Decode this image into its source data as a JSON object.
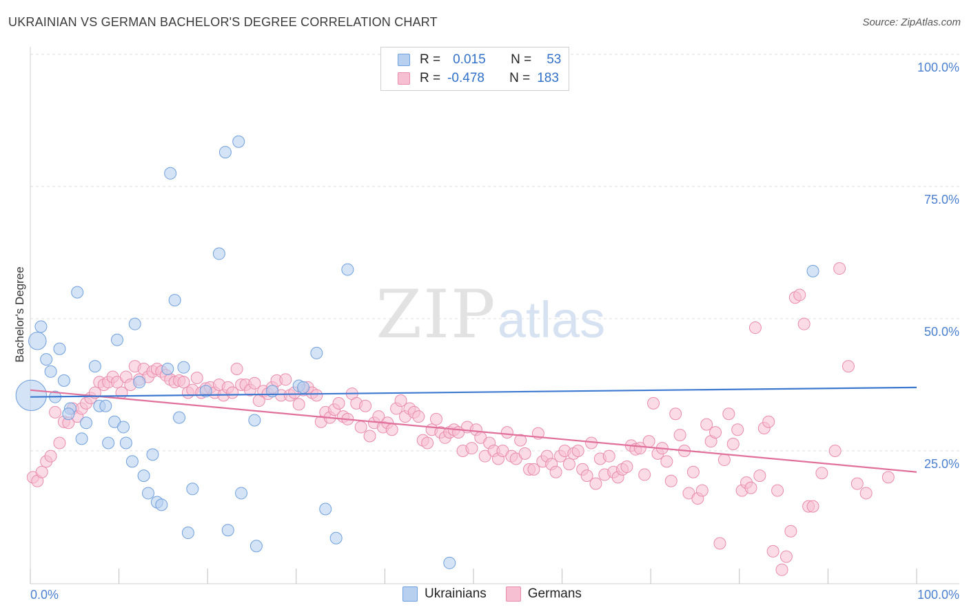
{
  "title": "UKRAINIAN VS GERMAN BACHELOR'S DEGREE CORRELATION CHART",
  "source": "Source: ZipAtlas.com",
  "watermark": {
    "zip": "ZIP",
    "atlas": "atlas"
  },
  "legend": {
    "rows": [
      {
        "r_label": "R =",
        "r_value": "0.015",
        "n_label": "N =",
        "n_value": "53"
      },
      {
        "r_label": "R =",
        "r_value": "-0.478",
        "n_label": "N =",
        "n_value": "183"
      }
    ]
  },
  "bottom_legend": {
    "ukrainians": "Ukrainians",
    "germans": "Germans"
  },
  "colors": {
    "blue_fill": "#b8d0f0",
    "blue_stroke": "#6f9fdc",
    "blue_line": "#3c78d0",
    "pink_fill": "#f7c0d2",
    "pink_stroke": "#e98aab",
    "pink_line": "#e0709a",
    "axis_text": "#4a7fd0",
    "grid": "#dddddd"
  },
  "chart_data": {
    "type": "scatter",
    "title": "UKRAINIAN VS GERMAN BACHELOR'S DEGREE CORRELATION CHART",
    "xlabel": "",
    "ylabel": "Bachelor's Degree",
    "xlim": [
      0,
      100
    ],
    "ylim": [
      0,
      100
    ],
    "x_tick_labels": [
      "0.0%",
      "100.0%"
    ],
    "y_tick_labels": [
      "25.0%",
      "50.0%",
      "75.0%",
      "100.0%"
    ],
    "y_ticks": [
      25,
      50,
      75,
      100
    ],
    "series": [
      {
        "name": "Ukrainians",
        "color": "#6f9fdc",
        "trend": {
          "x": [
            0,
            100
          ],
          "y": [
            35.2,
            37.0
          ]
        },
        "points": [
          [
            0.1,
            35.5,
            2.6
          ],
          [
            0.8,
            45.8,
            1.5
          ],
          [
            1.2,
            48.5,
            1
          ],
          [
            1.8,
            42.3,
            1
          ],
          [
            2.3,
            40.0,
            1
          ],
          [
            2.8,
            35.2,
            1
          ],
          [
            3.3,
            44.3,
            1
          ],
          [
            3.8,
            38.3,
            1
          ],
          [
            4.5,
            33.0,
            1
          ],
          [
            4.3,
            32.0,
            1
          ],
          [
            5.3,
            55.0,
            1
          ],
          [
            5.8,
            27.3,
            1
          ],
          [
            6.3,
            30.3,
            1
          ],
          [
            7.3,
            41.0,
            1
          ],
          [
            7.8,
            33.5,
            1
          ],
          [
            8.5,
            33.5,
            1
          ],
          [
            8.8,
            26.5,
            1
          ],
          [
            9.5,
            30.5,
            1
          ],
          [
            9.8,
            46.0,
            1
          ],
          [
            10.5,
            29.5,
            1
          ],
          [
            10.8,
            26.5,
            1
          ],
          [
            11.5,
            23.0,
            1
          ],
          [
            11.8,
            49.0,
            1
          ],
          [
            12.3,
            38.0,
            1
          ],
          [
            12.8,
            20.3,
            1
          ],
          [
            13.3,
            17.0,
            1
          ],
          [
            13.8,
            24.3,
            1
          ],
          [
            14.3,
            15.3,
            1
          ],
          [
            14.8,
            14.8,
            1
          ],
          [
            15.5,
            40.5,
            1
          ],
          [
            15.8,
            77.5,
            1
          ],
          [
            16.3,
            53.5,
            1
          ],
          [
            16.8,
            31.3,
            1
          ],
          [
            17.3,
            40.8,
            1
          ],
          [
            17.8,
            9.5,
            1
          ],
          [
            18.3,
            17.8,
            1
          ],
          [
            19.8,
            36.3,
            1
          ],
          [
            21.3,
            62.3,
            1
          ],
          [
            22.0,
            81.5,
            1
          ],
          [
            22.3,
            10.0,
            1
          ],
          [
            23.5,
            83.5,
            1
          ],
          [
            23.8,
            17.0,
            1
          ],
          [
            25.3,
            30.8,
            1
          ],
          [
            25.5,
            7.0,
            1
          ],
          [
            27.3,
            36.3,
            1
          ],
          [
            30.3,
            37.3,
            1
          ],
          [
            30.8,
            37.0,
            1
          ],
          [
            32.3,
            43.5,
            1
          ],
          [
            33.3,
            14.0,
            1
          ],
          [
            34.5,
            8.5,
            1
          ],
          [
            35.8,
            59.3,
            1
          ],
          [
            47.3,
            3.8,
            1
          ],
          [
            88.3,
            59.0,
            1
          ]
        ]
      },
      {
        "name": "Germans",
        "color": "#e98aab",
        "trend": {
          "x": [
            0,
            100
          ],
          "y": [
            36.5,
            21.0
          ]
        },
        "points": [
          [
            0.3,
            20.0
          ],
          [
            0.8,
            19.3
          ],
          [
            1.3,
            21.0
          ],
          [
            1.8,
            23.0
          ],
          [
            2.3,
            24.0
          ],
          [
            2.8,
            32.3
          ],
          [
            3.3,
            26.5
          ],
          [
            3.8,
            30.5
          ],
          [
            4.3,
            30.3
          ],
          [
            4.8,
            33.0
          ],
          [
            5.3,
            31.5
          ],
          [
            5.8,
            33.0
          ],
          [
            6.3,
            34.0
          ],
          [
            6.8,
            35.0
          ],
          [
            7.3,
            36.0
          ],
          [
            7.8,
            38.0
          ],
          [
            8.3,
            37.5
          ],
          [
            8.8,
            38.0
          ],
          [
            9.3,
            39.0
          ],
          [
            9.8,
            38.0
          ],
          [
            10.3,
            36.0
          ],
          [
            10.8,
            39.0
          ],
          [
            11.3,
            37.5
          ],
          [
            11.8,
            41.0
          ],
          [
            12.3,
            38.5
          ],
          [
            12.8,
            40.5
          ],
          [
            13.3,
            39.0
          ],
          [
            13.8,
            40.0
          ],
          [
            14.3,
            40.5
          ],
          [
            14.8,
            40.0
          ],
          [
            15.3,
            39.3
          ],
          [
            15.8,
            38.5
          ],
          [
            16.3,
            38.0
          ],
          [
            16.8,
            38.3
          ],
          [
            17.3,
            38.0
          ],
          [
            17.8,
            36.0
          ],
          [
            18.3,
            36.5
          ],
          [
            18.8,
            38.8
          ],
          [
            19.3,
            36.0
          ],
          [
            19.8,
            36.8
          ],
          [
            20.3,
            37.0
          ],
          [
            20.8,
            36.0
          ],
          [
            21.3,
            37.5
          ],
          [
            21.8,
            35.5
          ],
          [
            22.3,
            37.0
          ],
          [
            22.8,
            36.0
          ],
          [
            23.3,
            40.5
          ],
          [
            23.8,
            37.5
          ],
          [
            24.3,
            37.5
          ],
          [
            24.8,
            36.5
          ],
          [
            25.3,
            37.8
          ],
          [
            25.8,
            34.5
          ],
          [
            26.3,
            36.3
          ],
          [
            26.8,
            35.8
          ],
          [
            27.3,
            37.0
          ],
          [
            27.8,
            38.3
          ],
          [
            28.3,
            35.5
          ],
          [
            28.8,
            38.5
          ],
          [
            29.3,
            35.5
          ],
          [
            29.8,
            36.0
          ],
          [
            30.3,
            33.8
          ],
          [
            30.8,
            36.5
          ],
          [
            31.3,
            37.0
          ],
          [
            31.8,
            36.0
          ],
          [
            32.3,
            35.5
          ],
          [
            32.8,
            30.5
          ],
          [
            33.3,
            32.3
          ],
          [
            33.8,
            31.3
          ],
          [
            34.3,
            32.8
          ],
          [
            34.8,
            34.0
          ],
          [
            35.3,
            31.5
          ],
          [
            35.8,
            31.0
          ],
          [
            36.3,
            35.8
          ],
          [
            36.8,
            34.0
          ],
          [
            37.3,
            29.5
          ],
          [
            37.8,
            33.5
          ],
          [
            38.3,
            27.8
          ],
          [
            38.8,
            30.3
          ],
          [
            39.3,
            31.5
          ],
          [
            39.8,
            29.5
          ],
          [
            40.3,
            30.3
          ],
          [
            40.8,
            29.0
          ],
          [
            41.3,
            33.0
          ],
          [
            41.8,
            34.5
          ],
          [
            42.3,
            31.5
          ],
          [
            42.8,
            33.0
          ],
          [
            43.3,
            32.3
          ],
          [
            43.8,
            31.5
          ],
          [
            44.3,
            27.0
          ],
          [
            44.8,
            26.5
          ],
          [
            45.3,
            29.0
          ],
          [
            45.8,
            31.0
          ],
          [
            46.3,
            28.5
          ],
          [
            46.8,
            27.5
          ],
          [
            47.3,
            28.5
          ],
          [
            47.8,
            29.0
          ],
          [
            48.3,
            28.5
          ],
          [
            48.8,
            25.0
          ],
          [
            49.3,
            29.5
          ],
          [
            49.8,
            25.5
          ],
          [
            50.3,
            29.0
          ],
          [
            50.8,
            27.5
          ],
          [
            51.3,
            24.0
          ],
          [
            51.8,
            26.5
          ],
          [
            52.3,
            25.0
          ],
          [
            52.8,
            23.5
          ],
          [
            53.3,
            25.0
          ],
          [
            53.8,
            28.5
          ],
          [
            54.3,
            24.0
          ],
          [
            54.8,
            23.5
          ],
          [
            55.3,
            27.0
          ],
          [
            55.8,
            24.5
          ],
          [
            56.3,
            21.5
          ],
          [
            56.8,
            21.5
          ],
          [
            57.3,
            28.3
          ],
          [
            57.8,
            23.0
          ],
          [
            58.3,
            24.0
          ],
          [
            58.8,
            22.5
          ],
          [
            59.3,
            21.0
          ],
          [
            59.8,
            24.0
          ],
          [
            60.3,
            25.0
          ],
          [
            60.8,
            22.5
          ],
          [
            61.3,
            24.5
          ],
          [
            61.8,
            25.0
          ],
          [
            62.3,
            21.5
          ],
          [
            62.8,
            20.3
          ],
          [
            63.3,
            26.5
          ],
          [
            63.8,
            18.8
          ],
          [
            64.3,
            23.5
          ],
          [
            64.8,
            20.5
          ],
          [
            65.3,
            24.0
          ],
          [
            65.8,
            21.0
          ],
          [
            66.3,
            20.0
          ],
          [
            66.8,
            21.5
          ],
          [
            67.3,
            22.0
          ],
          [
            67.8,
            26.0
          ],
          [
            68.3,
            25.3
          ],
          [
            68.8,
            25.5
          ],
          [
            69.3,
            20.5
          ],
          [
            69.8,
            26.8
          ],
          [
            70.3,
            34.0
          ],
          [
            70.8,
            24.5
          ],
          [
            71.3,
            25.5
          ],
          [
            71.8,
            23.0
          ],
          [
            72.3,
            19.3
          ],
          [
            72.8,
            32.0
          ],
          [
            73.3,
            28.0
          ],
          [
            73.8,
            25.0
          ],
          [
            74.3,
            17.0
          ],
          [
            74.8,
            21.0
          ],
          [
            75.3,
            16.0
          ],
          [
            75.8,
            17.5
          ],
          [
            76.3,
            30.0
          ],
          [
            76.8,
            26.8
          ],
          [
            77.3,
            28.5
          ],
          [
            77.8,
            7.5
          ],
          [
            78.3,
            23.3
          ],
          [
            78.8,
            32.0
          ],
          [
            79.3,
            26.3
          ],
          [
            79.8,
            29.0
          ],
          [
            80.3,
            17.5
          ],
          [
            80.8,
            19.0
          ],
          [
            81.3,
            18.0
          ],
          [
            81.8,
            48.3
          ],
          [
            82.3,
            20.3
          ],
          [
            82.8,
            29.3
          ],
          [
            83.3,
            30.5
          ],
          [
            83.8,
            6.0
          ],
          [
            84.3,
            17.5
          ],
          [
            84.8,
            2.5
          ],
          [
            85.3,
            5.0
          ],
          [
            85.8,
            9.8
          ],
          [
            86.3,
            54.0
          ],
          [
            86.8,
            54.5
          ],
          [
            87.3,
            49.0
          ],
          [
            87.8,
            14.5
          ],
          [
            88.3,
            14.5
          ],
          [
            89.3,
            20.8
          ],
          [
            90.8,
            25.0
          ],
          [
            91.3,
            59.5
          ],
          [
            92.3,
            41.0
          ],
          [
            93.3,
            18.8
          ],
          [
            94.3,
            17.0
          ],
          [
            96.8,
            20.0
          ]
        ]
      }
    ]
  }
}
